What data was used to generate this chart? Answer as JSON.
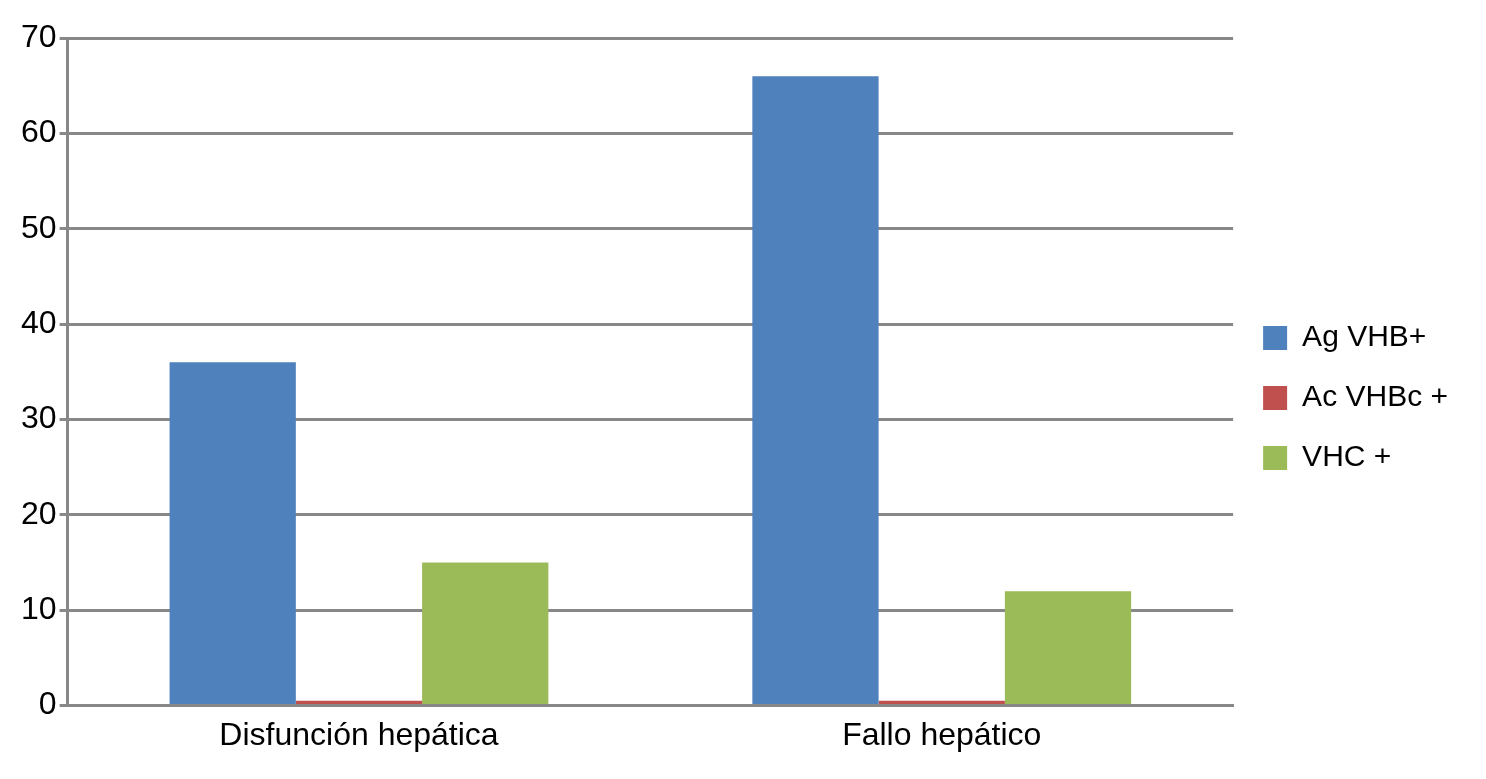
{
  "chart_data": {
    "type": "bar",
    "categories": [
      "Disfunción hepática",
      "Fallo hepático"
    ],
    "series": [
      {
        "name": "Ag VHB+",
        "color": "#4f81bd",
        "values": [
          36,
          66
        ]
      },
      {
        "name": "Ac VHBc +",
        "color": "#c0504d",
        "values": [
          0.5,
          0.5
        ]
      },
      {
        "name": "VHC +",
        "color": "#9bbb59",
        "values": [
          15,
          12
        ]
      }
    ],
    "ylim": [
      0,
      70
    ],
    "yticks": [
      0,
      10,
      20,
      30,
      40,
      50,
      60,
      70
    ],
    "grid": "y",
    "legend": "right"
  }
}
